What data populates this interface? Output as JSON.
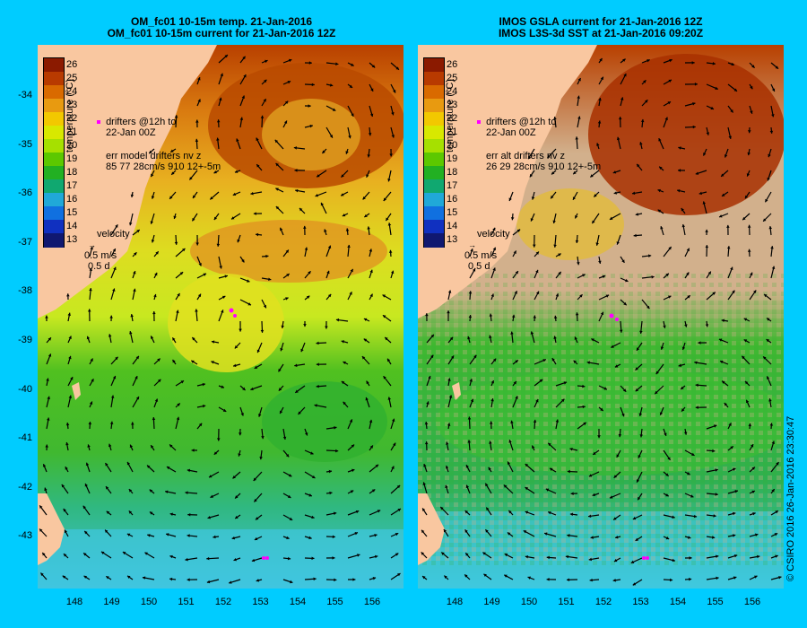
{
  "left_panel": {
    "title_line1": "OM_fc01 10-15m temp. 21-Jan-2016",
    "title_line2": "OM_fc01 10-15m current for 21-Jan-2016 12Z",
    "drifters_line1": "drifters @12h to",
    "drifters_line2": "22-Jan 00Z",
    "err_line1": "err model drifters nv z",
    "err_line2": "85 77 28cm/s 910 12+-5m",
    "velocity_label": "velocity",
    "velocity_speed": "0.5 m/s",
    "velocity_time": "0.5 d"
  },
  "right_panel": {
    "title_line1": "IMOS GSLA current for 21-Jan-2016 12Z",
    "title_line2": "IMOS L3S-3d SST at 21-Jan-2016 09:20Z",
    "drifters_line1": "drifters @12h to",
    "drifters_line2": "22-Jan 00Z",
    "err_line1": "err alt drifters nv z",
    "err_line2": "26 29 28cm/s 910 12+-5m",
    "velocity_label": "velocity",
    "velocity_speed": "0.5 m/s",
    "velocity_time": "0.5 d"
  },
  "colorbar": {
    "title": "temperature (°C)",
    "values": [
      "26",
      "25",
      "24",
      "23",
      "22",
      "21",
      "20",
      "19",
      "18",
      "17",
      "16",
      "15",
      "14",
      "13"
    ],
    "colors": [
      "#8b1a00",
      "#b83a00",
      "#d96a00",
      "#e89a10",
      "#f2c800",
      "#d8e800",
      "#a6e000",
      "#5cc800",
      "#22b022",
      "#10a870",
      "#20a8d8",
      "#1070e0",
      "#1030c0",
      "#101870"
    ]
  },
  "axes": {
    "lat_ticks": [
      "-34",
      "-35",
      "-36",
      "-37",
      "-38",
      "-39",
      "-40",
      "-41",
      "-42",
      "-43"
    ],
    "lon_ticks": [
      "148",
      "149",
      "150",
      "151",
      "152",
      "153",
      "154",
      "155",
      "156"
    ]
  },
  "copyright": "© CSIRO 2016   26-Jan-2016 23:30:47",
  "colors": {
    "background": "#00ccff",
    "land": "#f9c7a0",
    "right_cloud": "#d2b08c"
  }
}
